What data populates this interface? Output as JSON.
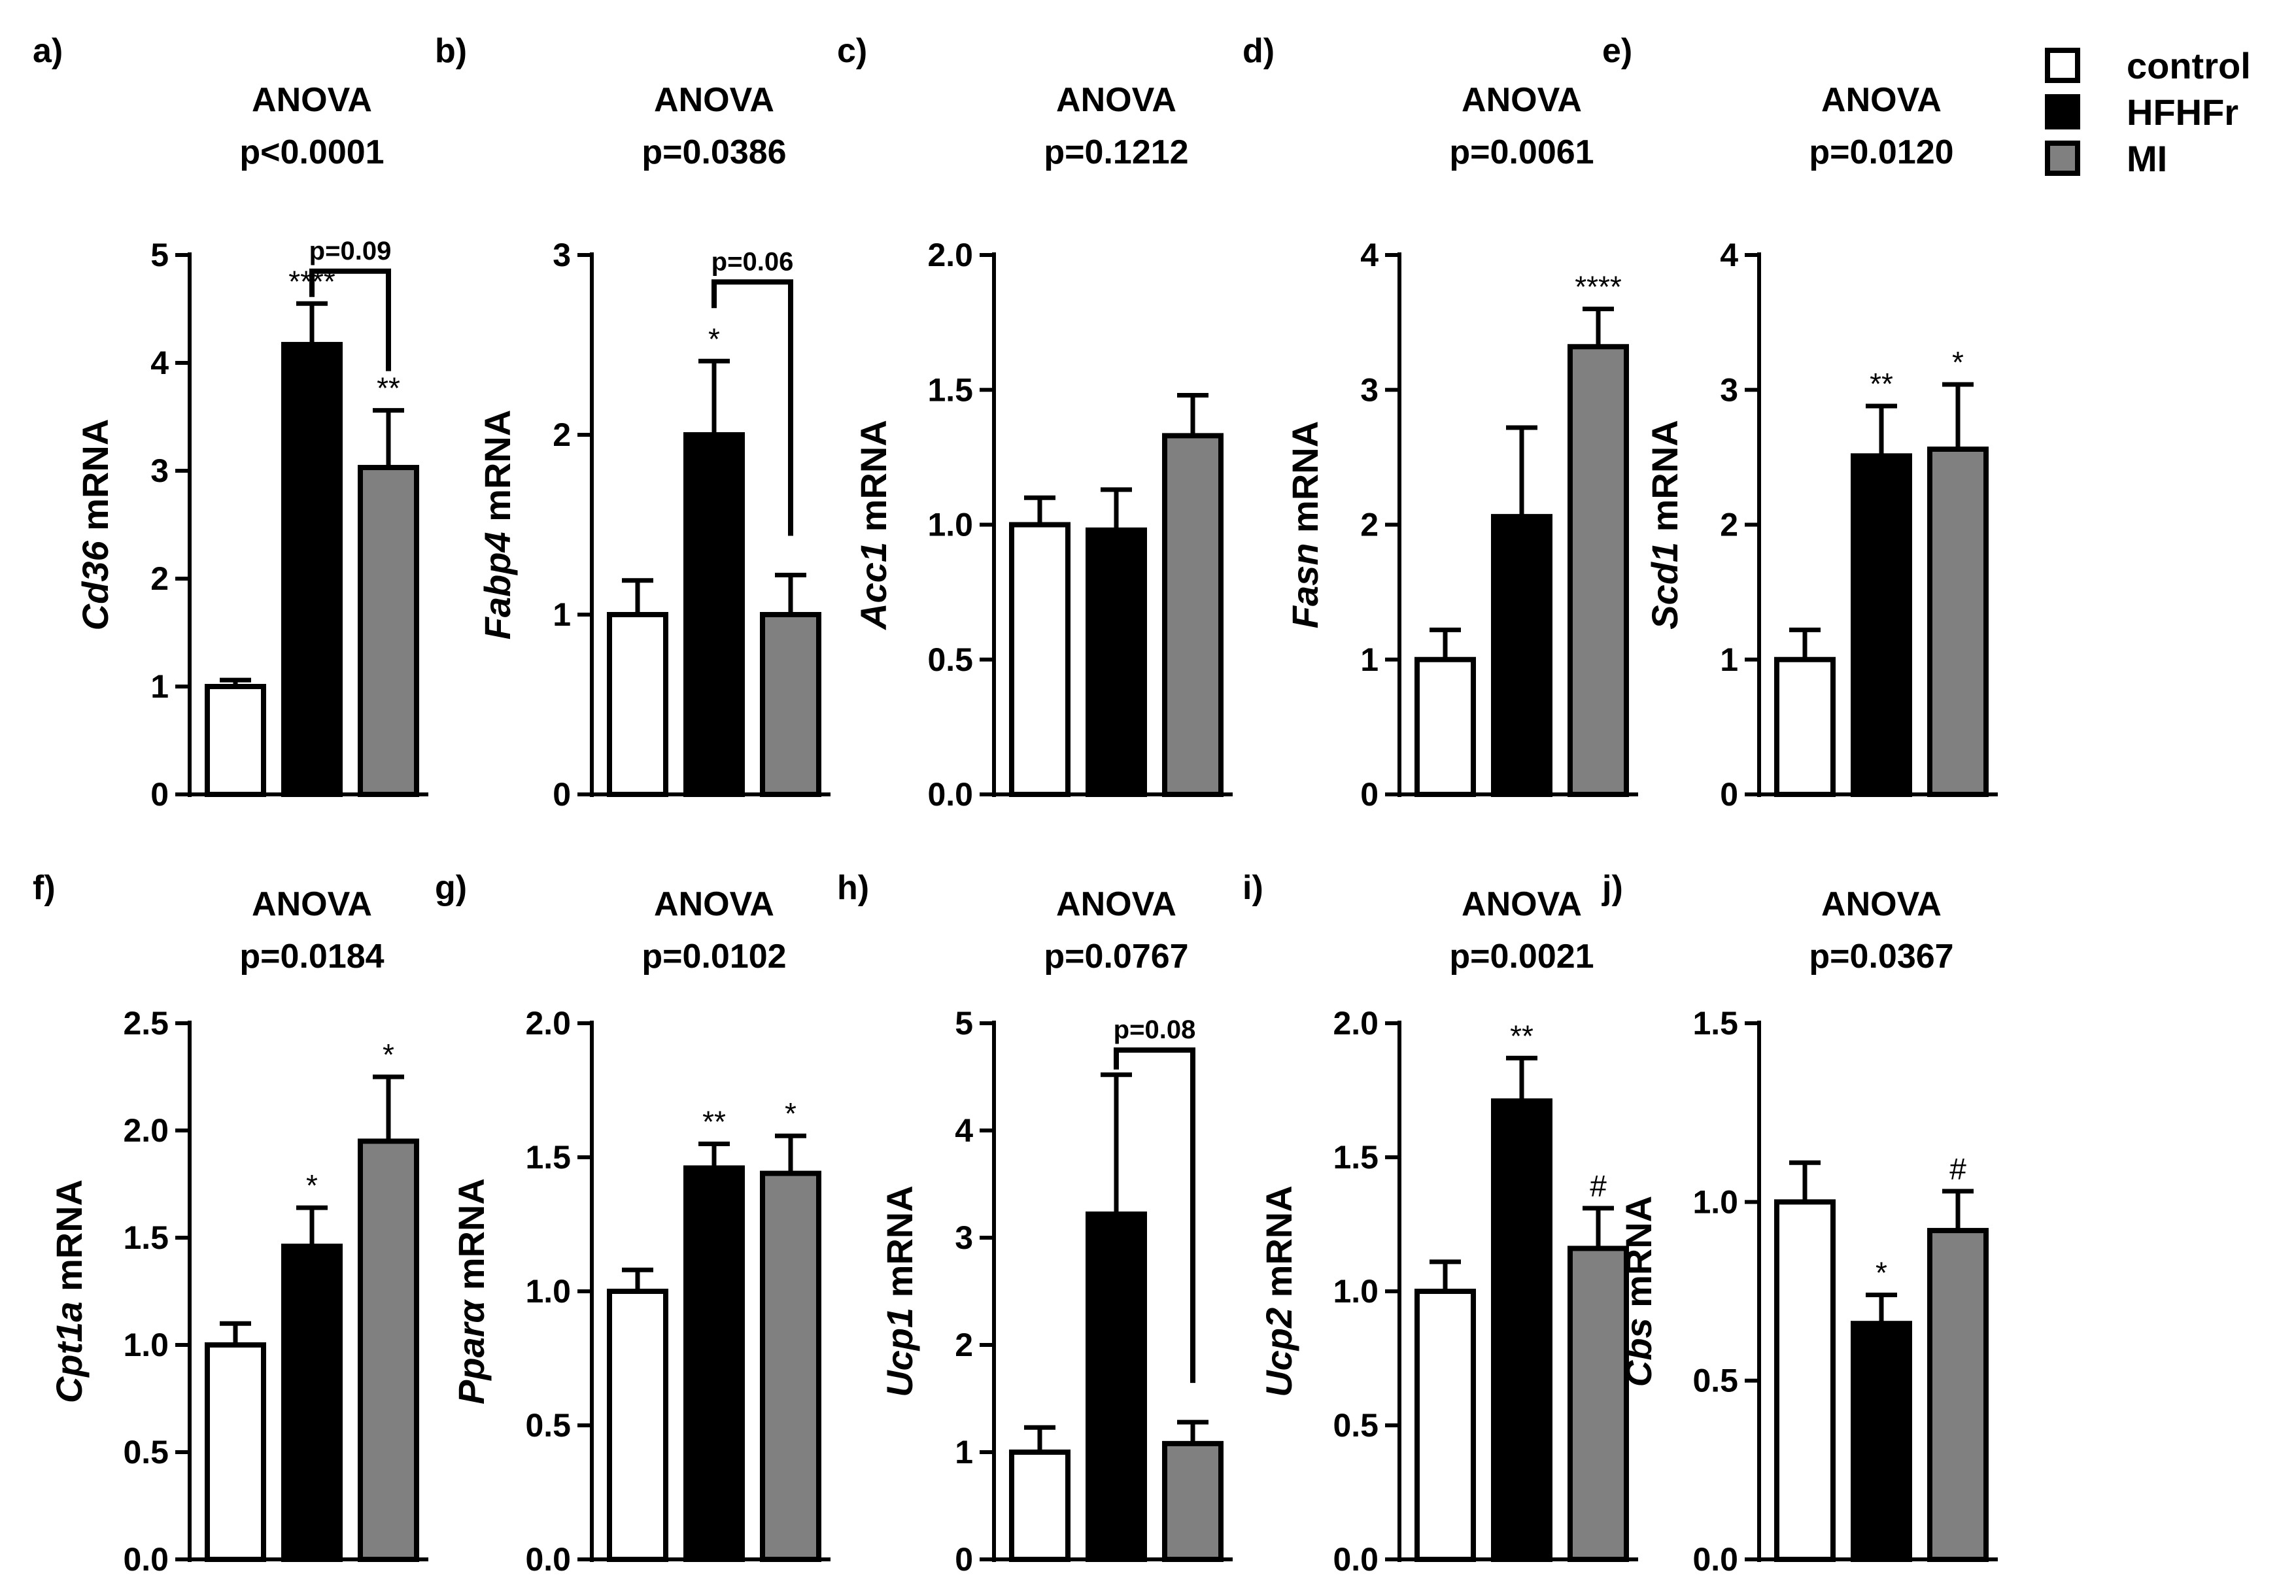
{
  "legend": {
    "entries": [
      {
        "label": "control",
        "color": "#ffffff"
      },
      {
        "label": "HFHFr",
        "color": "#000000"
      },
      {
        "label": "MI",
        "color": "#808080"
      }
    ]
  },
  "chart_data": [
    {
      "panel": "a)",
      "type": "bar",
      "title_line1": "ANOVA",
      "title_line2": "p<0.0001",
      "ylabel_gene": "Cd36",
      "ylabel_suffix": " mRNA",
      "categories": [
        "control",
        "HFHFr",
        "MI"
      ],
      "values": [
        1.0,
        4.17,
        3.03
      ],
      "errors": [
        0.06,
        0.38,
        0.53
      ],
      "ylim": [
        0,
        5
      ],
      "yticks": [
        "0",
        "1",
        "2",
        "3",
        "4",
        "5"
      ],
      "sig": [
        "",
        "****",
        "**"
      ],
      "bracket": {
        "from": 1,
        "to": 2,
        "label": "p=0.09",
        "y": 4.85
      }
    },
    {
      "panel": "b)",
      "type": "bar",
      "title_line1": "ANOVA",
      "title_line2": "p=0.0386",
      "ylabel_gene": "Fabp4",
      "ylabel_suffix": " mRNA",
      "categories": [
        "control",
        "HFHFr",
        "MI"
      ],
      "values": [
        1.0,
        2.0,
        1.0
      ],
      "errors": [
        0.19,
        0.41,
        0.22
      ],
      "ylim": [
        0,
        3
      ],
      "yticks": [
        "0",
        "1",
        "2",
        "3"
      ],
      "sig": [
        "",
        "*",
        ""
      ],
      "bracket": {
        "from": 1,
        "to": 2,
        "label": "p=0.06",
        "y": 2.85
      }
    },
    {
      "panel": "c)",
      "type": "bar",
      "title_line1": "ANOVA",
      "title_line2": "p=0.1212",
      "ylabel_gene": "Acc1",
      "ylabel_suffix": " mRNA",
      "categories": [
        "control",
        "HFHFr",
        "MI"
      ],
      "values": [
        1.0,
        0.98,
        1.33
      ],
      "errors": [
        0.1,
        0.15,
        0.15
      ],
      "ylim": [
        0,
        2
      ],
      "yticks": [
        "0.0",
        "0.5",
        "1.0",
        "1.5",
        "2.0"
      ],
      "sig": [
        "",
        "",
        ""
      ],
      "bracket": null
    },
    {
      "panel": "d)",
      "type": "bar",
      "title_line1": "ANOVA",
      "title_line2": "p=0.0061",
      "ylabel_gene": "Fasn",
      "ylabel_suffix": " mRNA",
      "categories": [
        "control",
        "HFHFr",
        "MI"
      ],
      "values": [
        1.0,
        2.06,
        3.32
      ],
      "errors": [
        0.22,
        0.66,
        0.28
      ],
      "ylim": [
        0,
        4
      ],
      "yticks": [
        "0",
        "1",
        "2",
        "3",
        "4"
      ],
      "sig": [
        "",
        "",
        "****"
      ],
      "bracket": null
    },
    {
      "panel": "e)",
      "type": "bar",
      "title_line1": "ANOVA",
      "title_line2": "p=0.0120",
      "ylabel_gene": "Scd1",
      "ylabel_suffix": " mRNA",
      "categories": [
        "control",
        "HFHFr",
        "MI"
      ],
      "values": [
        1.0,
        2.51,
        2.56
      ],
      "errors": [
        0.22,
        0.37,
        0.48
      ],
      "ylim": [
        0,
        4
      ],
      "yticks": [
        "0",
        "1",
        "2",
        "3",
        "4"
      ],
      "sig": [
        "",
        "**",
        "*"
      ],
      "bracket": null
    },
    {
      "panel": "f)",
      "type": "bar",
      "title_line1": "ANOVA",
      "title_line2": "p=0.0184",
      "ylabel_gene": "Cpt1a",
      "ylabel_suffix": " mRNA",
      "categories": [
        "control",
        "HFHFr",
        "MI"
      ],
      "values": [
        1.0,
        1.46,
        1.95
      ],
      "errors": [
        0.1,
        0.18,
        0.3
      ],
      "ylim": [
        0,
        2.5
      ],
      "yticks": [
        "0.0",
        "0.5",
        "1.0",
        "1.5",
        "2.0",
        "2.5"
      ],
      "sig": [
        "",
        "*",
        "*"
      ],
      "bracket": null
    },
    {
      "panel": "g)",
      "type": "bar",
      "title_line1": "ANOVA",
      "title_line2": "p=0.0102",
      "ylabel_gene": "Pparα",
      "ylabel_suffix": " mRNA",
      "categories": [
        "control",
        "HFHFr",
        "MI"
      ],
      "values": [
        1.0,
        1.46,
        1.44
      ],
      "errors": [
        0.08,
        0.09,
        0.14
      ],
      "ylim": [
        0,
        2
      ],
      "yticks": [
        "0.0",
        "0.5",
        "1.0",
        "1.5",
        "2.0"
      ],
      "sig": [
        "",
        "**",
        "*"
      ],
      "bracket": null
    },
    {
      "panel": "h)",
      "type": "bar",
      "title_line1": "ANOVA",
      "title_line2": "p=0.0767",
      "ylabel_gene": "Ucp1",
      "ylabel_suffix": " mRNA",
      "categories": [
        "control",
        "HFHFr",
        "MI"
      ],
      "values": [
        1.0,
        3.22,
        1.08
      ],
      "errors": [
        0.23,
        1.3,
        0.2
      ],
      "ylim": [
        0,
        5
      ],
      "yticks": [
        "0",
        "1",
        "2",
        "3",
        "4",
        "5"
      ],
      "sig": [
        "",
        "",
        ""
      ],
      "bracket": {
        "from": 1,
        "to": 2,
        "label": "p=0.08",
        "y": 4.75
      }
    },
    {
      "panel": "i)",
      "type": "bar",
      "title_line1": "ANOVA",
      "title_line2": "p=0.0021",
      "ylabel_gene": "Ucp2",
      "ylabel_suffix": " mRNA",
      "categories": [
        "control",
        "HFHFr",
        "MI"
      ],
      "values": [
        1.0,
        1.71,
        1.16
      ],
      "errors": [
        0.11,
        0.16,
        0.15
      ],
      "ylim": [
        0,
        2
      ],
      "yticks": [
        "0.0",
        "0.5",
        "1.0",
        "1.5",
        "2.0"
      ],
      "sig": [
        "",
        "**",
        "#"
      ],
      "bracket": null
    },
    {
      "panel": "j)",
      "type": "bar",
      "title_line1": "ANOVA",
      "title_line2": "p=0.0367",
      "ylabel_gene": "Cbs",
      "ylabel_suffix": " mRNA",
      "categories": [
        "control",
        "HFHFr",
        "MI"
      ],
      "values": [
        1.0,
        0.66,
        0.92
      ],
      "errors": [
        0.11,
        0.08,
        0.11
      ],
      "ylim": [
        0,
        1.5
      ],
      "yticks": [
        "0.0",
        "0.5",
        "1.0",
        "1.5"
      ],
      "sig": [
        "",
        "*",
        "#"
      ],
      "bracket": null
    }
  ]
}
